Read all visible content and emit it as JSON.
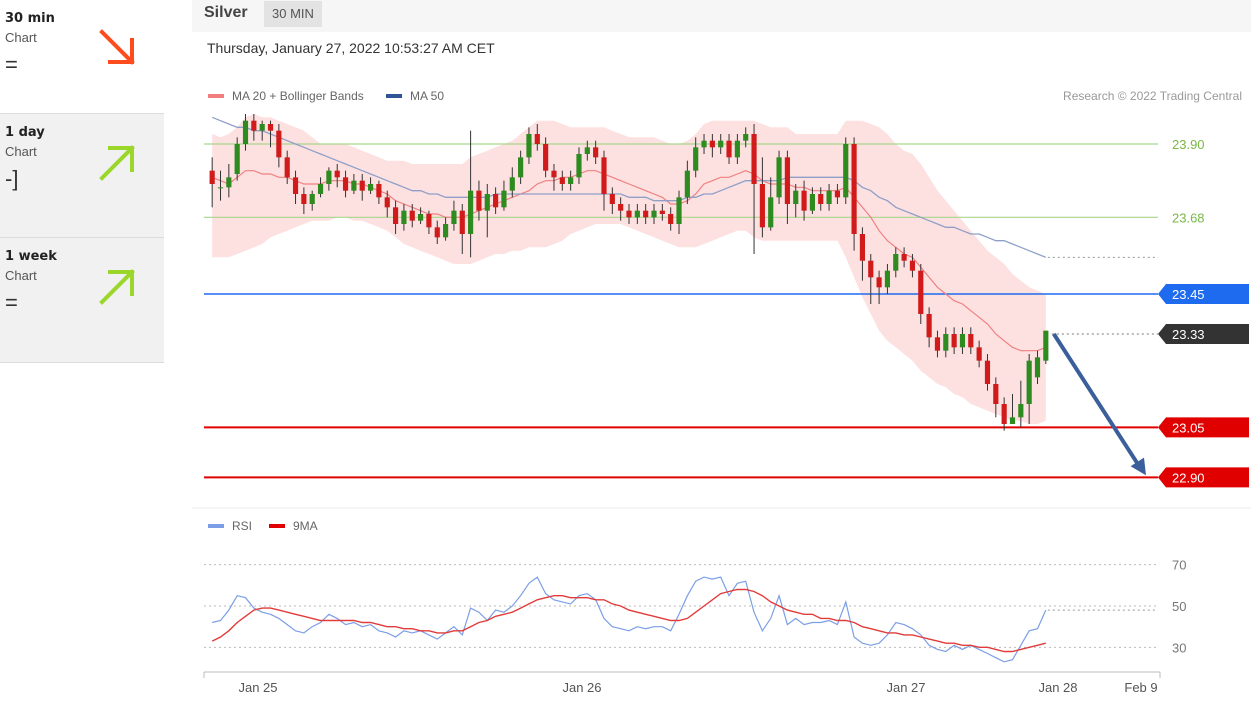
{
  "sidebar": {
    "items": [
      {
        "label": "30 min",
        "sub": "Chart",
        "sign": "=",
        "trend": "down",
        "arrow_color": "#ff4c1f"
      },
      {
        "label": "1 day",
        "sub": "Chart",
        "sign": "-]",
        "trend": "up",
        "arrow_color": "#9bd62b"
      },
      {
        "label": "1 week",
        "sub": "Chart",
        "sign": "=",
        "trend": "up",
        "arrow_color": "#9bd62b"
      }
    ]
  },
  "header": {
    "instrument": "Silver",
    "timeframe": "30 MIN",
    "datetime": "Thursday, January 27, 2022 10:53:27 AM CET"
  },
  "chart_data": [
    {
      "type": "candlestick",
      "legend": [
        {
          "name": "MA 20 + Bollinger Bands",
          "color": "#f08080"
        },
        {
          "name": "MA 50",
          "color": "#2f5597"
        }
      ],
      "credit": "Research © 2022 Trading Central",
      "ylim": [
        22.82,
        24.02
      ],
      "levels": [
        {
          "value": 23.9,
          "label": "23.90",
          "style": "line",
          "color": "#a8d68a",
          "text_color": "#7ab648"
        },
        {
          "value": 23.68,
          "label": "23.68",
          "style": "line",
          "color": "#a8d68a",
          "text_color": "#7ab648"
        },
        {
          "value": 23.45,
          "label": "23.45",
          "style": "tag",
          "color": "#1e6bf0"
        },
        {
          "value": 23.33,
          "label": "23.33",
          "style": "tag",
          "color": "#333333"
        },
        {
          "value": 23.05,
          "label": "23.05",
          "style": "tag",
          "color": "#e00000"
        },
        {
          "value": 22.9,
          "label": "22.90",
          "style": "tag",
          "color": "#e00000"
        }
      ],
      "forecast_arrow": {
        "from": 23.33,
        "to": 22.9,
        "color": "#3a5f9b"
      },
      "x_ticks": [
        "Jan 25",
        "Jan 26",
        "Jan 27",
        "Jan 28",
        "Feb 9"
      ],
      "candles": [
        [
          23.82,
          23.78,
          23.86,
          23.71
        ],
        [
          23.77,
          23.77,
          23.82,
          23.73
        ],
        [
          23.77,
          23.8,
          23.84,
          23.74
        ],
        [
          23.81,
          23.9,
          23.92,
          23.79
        ],
        [
          23.9,
          23.97,
          23.99,
          23.88
        ],
        [
          23.97,
          23.94,
          23.99,
          23.91
        ],
        [
          23.94,
          23.96,
          23.97,
          23.91
        ],
        [
          23.96,
          23.94,
          23.97,
          23.89
        ],
        [
          23.94,
          23.86,
          23.96,
          23.83
        ],
        [
          23.86,
          23.8,
          23.88,
          23.78
        ],
        [
          23.8,
          23.75,
          23.82,
          23.72
        ],
        [
          23.75,
          23.72,
          23.77,
          23.69
        ],
        [
          23.72,
          23.75,
          23.76,
          23.7
        ],
        [
          23.75,
          23.78,
          23.8,
          23.74
        ],
        [
          23.78,
          23.82,
          23.83,
          23.76
        ],
        [
          23.82,
          23.8,
          23.84,
          23.77
        ],
        [
          23.8,
          23.76,
          23.82,
          23.74
        ],
        [
          23.76,
          23.79,
          23.81,
          23.75
        ],
        [
          23.79,
          23.76,
          23.81,
          23.73
        ],
        [
          23.76,
          23.78,
          23.8,
          23.75
        ],
        [
          23.78,
          23.74,
          23.79,
          23.72
        ],
        [
          23.74,
          23.71,
          23.76,
          23.68
        ],
        [
          23.71,
          23.66,
          23.73,
          23.63
        ],
        [
          23.66,
          23.7,
          23.72,
          23.64
        ],
        [
          23.7,
          23.67,
          23.72,
          23.65
        ],
        [
          23.67,
          23.69,
          23.71,
          23.66
        ],
        [
          23.69,
          23.65,
          23.7,
          23.63
        ],
        [
          23.65,
          23.62,
          23.67,
          23.6
        ],
        [
          23.62,
          23.66,
          23.68,
          23.61
        ],
        [
          23.66,
          23.7,
          23.73,
          23.64
        ],
        [
          23.7,
          23.63,
          23.72,
          23.57
        ],
        [
          23.63,
          23.76,
          23.94,
          23.56
        ],
        [
          23.76,
          23.7,
          23.79,
          23.67
        ],
        [
          23.7,
          23.75,
          23.78,
          23.62
        ],
        [
          23.75,
          23.71,
          23.77,
          23.69
        ],
        [
          23.71,
          23.76,
          23.79,
          23.7
        ],
        [
          23.76,
          23.8,
          23.83,
          23.74
        ],
        [
          23.8,
          23.86,
          23.88,
          23.78
        ],
        [
          23.86,
          23.93,
          23.95,
          23.84
        ],
        [
          23.93,
          23.9,
          23.96,
          23.88
        ],
        [
          23.9,
          23.82,
          23.92,
          23.8
        ],
        [
          23.82,
          23.8,
          23.84,
          23.76
        ],
        [
          23.8,
          23.78,
          23.82,
          23.76
        ],
        [
          23.78,
          23.8,
          23.82,
          23.76
        ],
        [
          23.8,
          23.87,
          23.89,
          23.78
        ],
        [
          23.87,
          23.89,
          23.91,
          23.85
        ],
        [
          23.89,
          23.86,
          23.91,
          23.84
        ],
        [
          23.86,
          23.75,
          23.88,
          23.7
        ],
        [
          23.75,
          23.72,
          23.77,
          23.69
        ],
        [
          23.72,
          23.7,
          23.74,
          23.67
        ],
        [
          23.7,
          23.68,
          23.72,
          23.66
        ],
        [
          23.68,
          23.7,
          23.72,
          23.66
        ],
        [
          23.7,
          23.68,
          23.72,
          23.66
        ],
        [
          23.68,
          23.7,
          23.72,
          23.66
        ],
        [
          23.7,
          23.69,
          23.72,
          23.67
        ],
        [
          23.69,
          23.66,
          23.71,
          23.64
        ],
        [
          23.66,
          23.74,
          23.76,
          23.63
        ],
        [
          23.74,
          23.82,
          23.85,
          23.72
        ],
        [
          23.82,
          23.89,
          23.92,
          23.8
        ],
        [
          23.89,
          23.91,
          23.93,
          23.87
        ],
        [
          23.91,
          23.89,
          23.93,
          23.86
        ],
        [
          23.89,
          23.91,
          23.93,
          23.87
        ],
        [
          23.91,
          23.86,
          23.93,
          23.84
        ],
        [
          23.86,
          23.91,
          23.93,
          23.84
        ],
        [
          23.91,
          23.93,
          23.95,
          23.89
        ],
        [
          23.93,
          23.78,
          23.96,
          23.57
        ],
        [
          23.78,
          23.65,
          23.86,
          23.62
        ],
        [
          23.65,
          23.74,
          23.8,
          23.64
        ],
        [
          23.74,
          23.86,
          23.88,
          23.72
        ],
        [
          23.86,
          23.72,
          23.88,
          23.66
        ],
        [
          23.72,
          23.76,
          23.78,
          23.68
        ],
        [
          23.76,
          23.7,
          23.79,
          23.67
        ],
        [
          23.7,
          23.75,
          23.77,
          23.69
        ],
        [
          23.75,
          23.72,
          23.77,
          23.7
        ],
        [
          23.72,
          23.76,
          23.78,
          23.7
        ],
        [
          23.76,
          23.74,
          23.78,
          23.72
        ],
        [
          23.74,
          23.9,
          23.92,
          23.72
        ],
        [
          23.9,
          23.63,
          23.92,
          23.58
        ],
        [
          23.63,
          23.55,
          23.65,
          23.49
        ],
        [
          23.55,
          23.5,
          23.57,
          23.42
        ],
        [
          23.5,
          23.47,
          23.52,
          23.42
        ],
        [
          23.47,
          23.52,
          23.54,
          23.45
        ],
        [
          23.52,
          23.57,
          23.59,
          23.5
        ],
        [
          23.57,
          23.55,
          23.59,
          23.53
        ],
        [
          23.55,
          23.52,
          23.57,
          23.5
        ],
        [
          23.52,
          23.39,
          23.54,
          23.36
        ],
        [
          23.39,
          23.32,
          23.41,
          23.29
        ],
        [
          23.32,
          23.28,
          23.34,
          23.26
        ],
        [
          23.28,
          23.33,
          23.35,
          23.26
        ],
        [
          23.33,
          23.29,
          23.35,
          23.27
        ],
        [
          23.29,
          23.33,
          23.35,
          23.27
        ],
        [
          23.33,
          23.29,
          23.35,
          23.27
        ],
        [
          23.29,
          23.25,
          23.31,
          23.23
        ],
        [
          23.25,
          23.18,
          23.27,
          23.16
        ],
        [
          23.18,
          23.12,
          23.2,
          23.08
        ],
        [
          23.12,
          23.06,
          23.14,
          23.04
        ],
        [
          23.06,
          23.08,
          23.15,
          23.06
        ],
        [
          23.08,
          23.12,
          23.19,
          23.05
        ],
        [
          23.12,
          23.25,
          23.27,
          23.06
        ],
        [
          23.2,
          23.26,
          23.28,
          23.18
        ],
        [
          23.25,
          23.34,
          23.34,
          23.24
        ]
      ],
      "ma20": [
        23.8,
        23.79,
        23.78,
        23.8,
        23.82,
        23.82,
        23.81,
        23.81,
        23.8,
        23.8,
        23.79,
        23.78,
        23.78,
        23.78,
        23.79,
        23.79,
        23.79,
        23.78,
        23.78,
        23.77,
        23.76,
        23.75,
        23.73,
        23.72,
        23.71,
        23.7,
        23.69,
        23.69,
        23.68,
        23.68,
        23.68,
        23.69,
        23.7,
        23.71,
        23.72,
        23.73,
        23.74,
        23.75,
        23.76,
        23.78,
        23.79,
        23.79,
        23.8,
        23.8,
        23.81,
        23.82,
        23.82,
        23.81,
        23.8,
        23.79,
        23.78,
        23.77,
        23.76,
        23.75,
        23.74,
        23.72,
        23.72,
        23.73,
        23.75,
        23.78,
        23.79,
        23.8,
        23.8,
        23.81,
        23.82,
        23.81,
        23.79,
        23.78,
        23.78,
        23.78,
        23.77,
        23.77,
        23.76,
        23.76,
        23.76,
        23.76,
        23.77,
        23.74,
        23.71,
        23.68,
        23.64,
        23.61,
        23.59,
        23.57,
        23.56,
        23.53,
        23.5,
        23.47,
        23.45,
        23.43,
        23.42,
        23.4,
        23.38,
        23.36,
        23.33,
        23.31,
        23.29,
        23.28,
        23.28,
        23.28,
        23.29
      ],
      "bb_upper": [
        23.93,
        23.92,
        23.93,
        23.95,
        23.98,
        23.99,
        23.98,
        23.98,
        23.97,
        23.96,
        23.95,
        23.94,
        23.92,
        23.9,
        23.9,
        23.9,
        23.9,
        23.89,
        23.88,
        23.87,
        23.86,
        23.85,
        23.85,
        23.85,
        23.84,
        23.84,
        23.84,
        23.84,
        23.84,
        23.84,
        23.84,
        23.86,
        23.87,
        23.88,
        23.89,
        23.9,
        23.91,
        23.93,
        23.95,
        23.97,
        23.97,
        23.97,
        23.96,
        23.95,
        23.95,
        23.95,
        23.95,
        23.95,
        23.94,
        23.93,
        23.92,
        23.92,
        23.92,
        23.92,
        23.91,
        23.9,
        23.9,
        23.91,
        23.93,
        23.96,
        23.97,
        23.97,
        23.97,
        23.97,
        23.97,
        23.97,
        23.96,
        23.95,
        23.95,
        23.95,
        23.93,
        23.93,
        23.93,
        23.93,
        23.93,
        23.93,
        23.97,
        23.97,
        23.97,
        23.96,
        23.95,
        23.93,
        23.9,
        23.88,
        23.87,
        23.84,
        23.8,
        23.76,
        23.73,
        23.7,
        23.67,
        23.64,
        23.61,
        23.58,
        23.56,
        23.54,
        23.51,
        23.49,
        23.47,
        23.46,
        23.45
      ],
      "bb_lower": [
        23.56,
        23.56,
        23.56,
        23.57,
        23.58,
        23.59,
        23.6,
        23.62,
        23.63,
        23.64,
        23.65,
        23.66,
        23.67,
        23.67,
        23.67,
        23.68,
        23.68,
        23.67,
        23.67,
        23.66,
        23.65,
        23.64,
        23.62,
        23.6,
        23.59,
        23.58,
        23.57,
        23.56,
        23.55,
        23.54,
        23.54,
        23.54,
        23.55,
        23.56,
        23.57,
        23.57,
        23.58,
        23.58,
        23.59,
        23.59,
        23.59,
        23.6,
        23.61,
        23.63,
        23.64,
        23.65,
        23.66,
        23.66,
        23.66,
        23.66,
        23.65,
        23.64,
        23.63,
        23.62,
        23.61,
        23.6,
        23.59,
        23.59,
        23.59,
        23.6,
        23.61,
        23.62,
        23.63,
        23.64,
        23.64,
        23.62,
        23.61,
        23.61,
        23.61,
        23.61,
        23.61,
        23.61,
        23.61,
        23.61,
        23.61,
        23.61,
        23.56,
        23.5,
        23.44,
        23.39,
        23.34,
        23.31,
        23.29,
        23.27,
        23.25,
        23.22,
        23.2,
        23.18,
        23.17,
        23.15,
        23.14,
        23.12,
        23.11,
        23.1,
        23.09,
        23.08,
        23.07,
        23.07,
        23.06,
        23.06,
        23.07
      ],
      "ma50": [
        23.98,
        23.97,
        23.96,
        23.95,
        23.95,
        23.94,
        23.94,
        23.93,
        23.92,
        23.91,
        23.9,
        23.89,
        23.88,
        23.87,
        23.86,
        23.85,
        23.84,
        23.83,
        23.82,
        23.81,
        23.8,
        23.79,
        23.78,
        23.77,
        23.76,
        23.76,
        23.75,
        23.75,
        23.74,
        23.74,
        23.74,
        23.74,
        23.74,
        23.74,
        23.75,
        23.75,
        23.75,
        23.75,
        23.75,
        23.75,
        23.75,
        23.75,
        23.75,
        23.75,
        23.75,
        23.75,
        23.75,
        23.75,
        23.75,
        23.75,
        23.74,
        23.74,
        23.74,
        23.73,
        23.73,
        23.73,
        23.73,
        23.74,
        23.74,
        23.75,
        23.75,
        23.76,
        23.77,
        23.78,
        23.79,
        23.79,
        23.79,
        23.79,
        23.79,
        23.8,
        23.8,
        23.8,
        23.8,
        23.8,
        23.8,
        23.8,
        23.8,
        23.79,
        23.77,
        23.76,
        23.74,
        23.73,
        23.71,
        23.7,
        23.69,
        23.68,
        23.67,
        23.66,
        23.65,
        23.65,
        23.64,
        23.63,
        23.63,
        23.62,
        23.61,
        23.61,
        23.6,
        23.59,
        23.58,
        23.57,
        23.56
      ]
    },
    {
      "type": "line",
      "legend": [
        {
          "name": "RSI",
          "color": "#7b9ee6"
        },
        {
          "name": "9MA",
          "color": "#e00000"
        }
      ],
      "ylim": [
        20,
        80
      ],
      "y_ticks": [
        70,
        50,
        30
      ],
      "rsi": [
        42,
        43,
        48,
        55,
        54,
        49,
        47,
        46,
        44,
        41,
        38,
        37,
        40,
        42,
        46,
        44,
        41,
        42,
        40,
        41,
        38,
        37,
        35,
        38,
        37,
        38,
        36,
        34,
        37,
        40,
        36,
        49,
        47,
        43,
        48,
        47,
        50,
        55,
        61,
        64,
        56,
        53,
        52,
        51,
        55,
        56,
        53,
        44,
        40,
        39,
        38,
        40,
        39,
        40,
        40,
        38,
        46,
        55,
        62,
        64,
        63,
        64,
        55,
        61,
        62,
        47,
        38,
        44,
        55,
        41,
        44,
        41,
        42,
        42,
        43,
        41,
        52,
        35,
        32,
        31,
        32,
        36,
        42,
        41,
        39,
        36,
        31,
        29,
        28,
        31,
        29,
        31,
        29,
        27,
        25,
        23,
        24,
        31,
        38,
        39,
        48
      ],
      "ma9": [
        33,
        35,
        38,
        42,
        45,
        48,
        49,
        49,
        48,
        47,
        46,
        45,
        44,
        43,
        43,
        43,
        43,
        43,
        42,
        42,
        41,
        40,
        40,
        39,
        39,
        38,
        38,
        37,
        37,
        38,
        38,
        40,
        42,
        43,
        45,
        46,
        47,
        49,
        51,
        53,
        54,
        55,
        55,
        54,
        54,
        54,
        53,
        53,
        51,
        50,
        48,
        47,
        46,
        45,
        44,
        43,
        43,
        44,
        47,
        50,
        53,
        56,
        57,
        58,
        58,
        57,
        55,
        52,
        50,
        48,
        47,
        46,
        46,
        44,
        44,
        43,
        43,
        42,
        40,
        39,
        38,
        37,
        37,
        36,
        36,
        35,
        34,
        33,
        32,
        32,
        31,
        31,
        30,
        30,
        29,
        28,
        28,
        29,
        30,
        31,
        32
      ],
      "x_ticks": [
        "Jan 25",
        "Jan 26",
        "Jan 27",
        "Jan 28",
        "Feb 9"
      ]
    }
  ]
}
